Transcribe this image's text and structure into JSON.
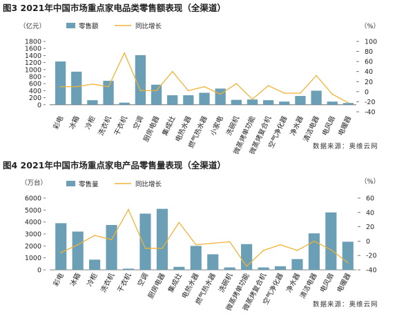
{
  "colors": {
    "bar": "#6a9fb5",
    "line": "#f2b134",
    "axis": "#555555"
  },
  "chart_data": [
    {
      "type": "bar",
      "title": "图3  2021年中国市场重点家电品类零售额表现（全渠道）",
      "left_unit": "（亿元）",
      "right_unit": "（%）",
      "legend": {
        "bar": "零售额",
        "line": "同比增长"
      },
      "source": "数据来源：奥维云网",
      "categories": [
        "彩电",
        "冰箱",
        "冷柜",
        "洗衣机",
        "干衣机",
        "空调",
        "厨房电器",
        "集成灶",
        "电热水器",
        "燃气热水器",
        "小家电",
        "洗碗机",
        "微蒸烤单功能",
        "微蒸烤复合机",
        "空气净化器",
        "净水器",
        "清洁电器",
        "电风扇",
        "电暖器"
      ],
      "left_ticks": [
        0,
        200,
        400,
        600,
        800,
        1000,
        1200,
        1400,
        1600,
        1800
      ],
      "right_ticks": [
        -40,
        -20,
        0,
        20,
        40,
        60,
        80,
        100
      ],
      "ylim": [
        -200,
        1800
      ],
      "y2lim": [
        -40,
        100
      ],
      "series": [
        {
          "name": "零售额",
          "kind": "bar",
          "axis": "left",
          "values": [
            1230,
            940,
            130,
            680,
            60,
            1410,
            570,
            270,
            270,
            340,
            460,
            140,
            150,
            130,
            90,
            250,
            400,
            90,
            50
          ]
        },
        {
          "name": "同比增长",
          "kind": "line",
          "axis": "right",
          "values": [
            10,
            10,
            15,
            10,
            77,
            2,
            2,
            40,
            2,
            10,
            -5,
            16,
            -15,
            12,
            -3,
            -3,
            32,
            -5,
            -22
          ]
        }
      ]
    },
    {
      "type": "bar",
      "title": "图4  2021年中国市场重点家电产品零售量表现（全渠道）",
      "left_unit": "（万台）",
      "right_unit": "（%）",
      "legend": {
        "bar": "零售量",
        "line": "同比增长"
      },
      "source": "数据来源：奥维云网",
      "categories": [
        "彩电",
        "冰箱",
        "冷柜",
        "洗衣机",
        "干衣机",
        "空调",
        "厨房电器",
        "集成灶",
        "电热水器",
        "燃气热水器",
        "洗碗机",
        "微蒸烤单功能",
        "微蒸烤复合机",
        "空气净化器",
        "净水器",
        "清洁电器",
        "电风扇",
        "电暖器"
      ],
      "left_ticks": [
        0,
        1000,
        2000,
        3000,
        4000,
        5000,
        6000
      ],
      "right_ticks": [
        -40,
        -20,
        0,
        20,
        40,
        60
      ],
      "ylim": [
        0,
        6000
      ],
      "y2lim": [
        -40,
        60
      ],
      "series": [
        {
          "name": "零售量",
          "kind": "bar",
          "axis": "left",
          "values": [
            3900,
            3200,
            850,
            3750,
            100,
            4700,
            5100,
            250,
            2000,
            1300,
            200,
            2150,
            200,
            300,
            900,
            3050,
            4800,
            2350
          ]
        },
        {
          "name": "同比增长",
          "kind": "line",
          "axis": "right",
          "values": [
            -16,
            -5,
            8,
            2,
            44,
            -10,
            -10,
            26,
            -5,
            -3,
            -1,
            -35,
            -13,
            -5,
            -13,
            0,
            -12,
            -30
          ]
        }
      ]
    }
  ]
}
